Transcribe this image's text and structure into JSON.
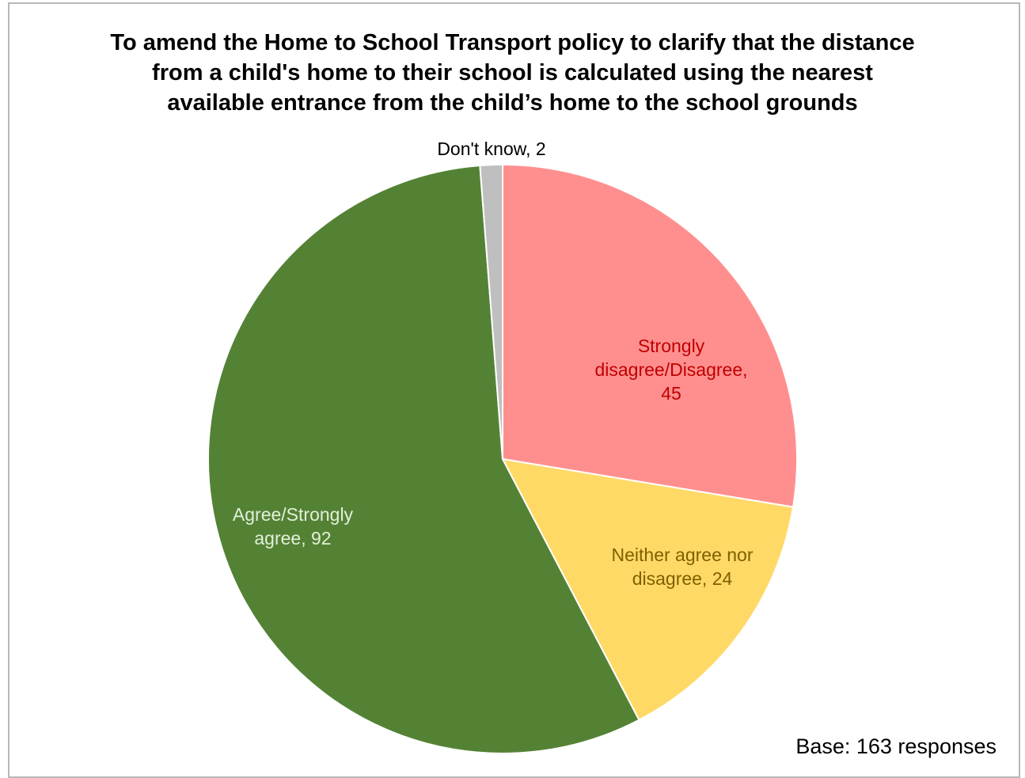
{
  "chart_data": {
    "type": "pie",
    "title": "To amend the Home to School Transport policy to clarify that the distance\nfrom a child's home to their school is calculated using the nearest\navailable entrance from the child’s home to the school grounds",
    "slices": [
      {
        "key": "disagree",
        "label_lines": [
          "Strongly",
          "disagree/Disagree,",
          "45"
        ],
        "value": 45,
        "color": "#FF8F8F",
        "label_color": "#C00000"
      },
      {
        "key": "neither",
        "label_lines": [
          "Neither agree nor",
          "disagree, 24"
        ],
        "value": 24,
        "color": "#FFD966",
        "label_color": "#7F6000"
      },
      {
        "key": "agree",
        "label_lines": [
          "Agree/Strongly",
          "agree, 92"
        ],
        "value": 92,
        "color": "#548235",
        "label_color": "#E2F0D9"
      },
      {
        "key": "dont-know",
        "label_lines": [
          "Don't know, 2"
        ],
        "value": 2,
        "color": "#BFBFBF",
        "label_color": "#000000"
      }
    ],
    "start_angle": "12 o'clock",
    "direction": "clockwise",
    "legend": "none",
    "base_note": "Base: 163 responses"
  }
}
